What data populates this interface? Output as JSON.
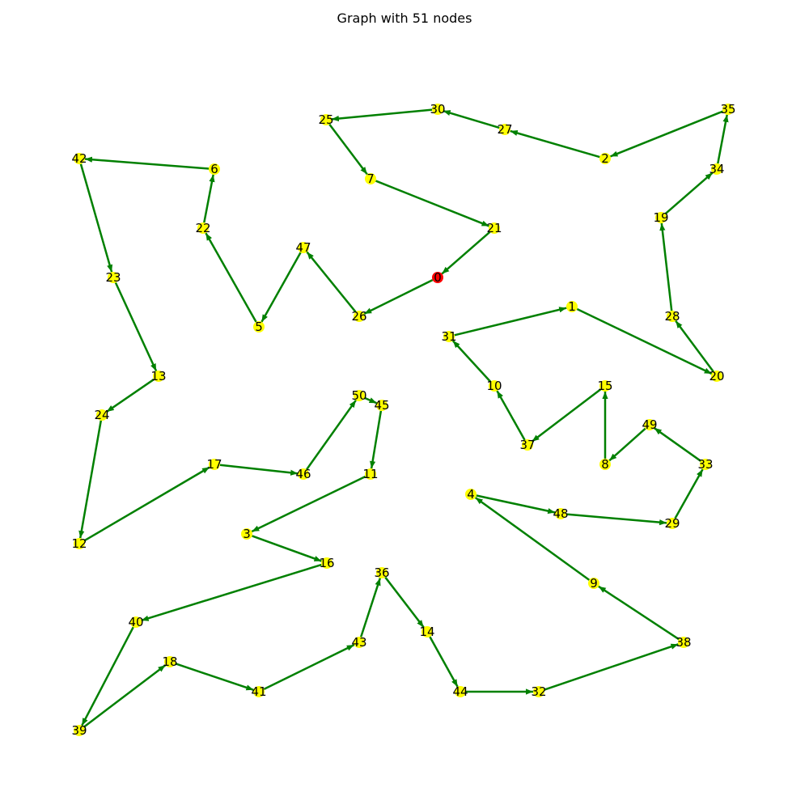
{
  "title": "Graph with 51 nodes",
  "colors": {
    "edge": "#008000",
    "node": "#ffff00",
    "start_node": "#ff0000",
    "label": "#000000",
    "background": "#ffffff"
  },
  "start_node": "0",
  "tour": [
    "0",
    "26",
    "47",
    "5",
    "22",
    "6",
    "42",
    "23",
    "13",
    "24",
    "12",
    "17",
    "46",
    "50",
    "45",
    "11",
    "3",
    "16",
    "40",
    "39",
    "18",
    "41",
    "43",
    "36",
    "14",
    "44",
    "32",
    "38",
    "9",
    "4",
    "48",
    "29",
    "33",
    "49",
    "8",
    "15",
    "37",
    "10",
    "31",
    "1",
    "20",
    "28",
    "19",
    "34",
    "35",
    "2",
    "27",
    "30",
    "25",
    "7",
    "21",
    "0"
  ]
}
